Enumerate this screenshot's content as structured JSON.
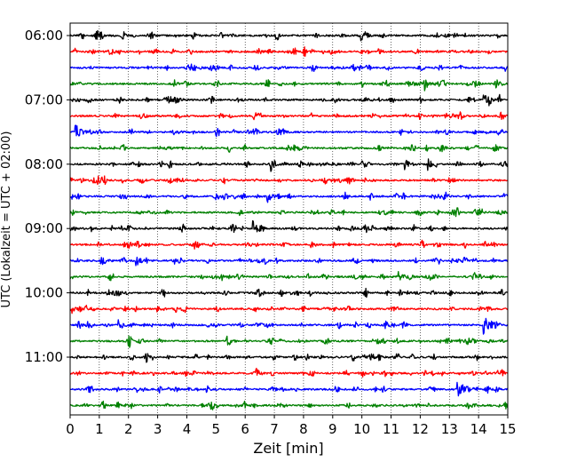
{
  "chart_data": {
    "type": "line",
    "chart_style": "seismogram-helicorder",
    "xlabel": "Zeit  [min]",
    "ylabel": "UTC (Lokalzeit = UTC + 02:00)",
    "xlim": [
      0,
      15
    ],
    "x_ticks": [
      "0",
      "1",
      "2",
      "3",
      "4",
      "5",
      "6",
      "7",
      "8",
      "9",
      "10",
      "11",
      "12",
      "13",
      "14",
      "15"
    ],
    "x_grid": "dotted-vertical",
    "trace_interval_minutes": 15,
    "y_ticks": [
      {
        "label": "06:00",
        "trace": 0
      },
      {
        "label": "07:00",
        "trace": 4
      },
      {
        "label": "08:00",
        "trace": 8
      },
      {
        "label": "09:00",
        "trace": 12
      },
      {
        "label": "10:00",
        "trace": 16
      },
      {
        "label": "11:00",
        "trace": 20
      }
    ],
    "trace_colors": [
      "#000000",
      "#ff0000",
      "#0000ff",
      "#008000"
    ],
    "trace_count": 24,
    "events": [
      {
        "trace": 0,
        "minute": 10.0,
        "amplitude": 0.35
      },
      {
        "trace": 1,
        "minute": 10.6,
        "amplitude": 0.2
      },
      {
        "trace": 3,
        "minute": 12.2,
        "amplitude": 0.4
      },
      {
        "trace": 4,
        "minute": 3.6,
        "amplitude": 0.45
      },
      {
        "trace": 4,
        "minute": 14.2,
        "amplitude": 0.45
      },
      {
        "trace": 5,
        "minute": 6.3,
        "amplitude": 0.3
      },
      {
        "trace": 6,
        "minute": 0.2,
        "amplitude": 1.1
      },
      {
        "trace": 8,
        "minute": 6.9,
        "amplitude": 0.65
      },
      {
        "trace": 8,
        "minute": 11.5,
        "amplitude": 0.45
      },
      {
        "trace": 8,
        "minute": 12.3,
        "amplitude": 0.45
      },
      {
        "trace": 10,
        "minute": 6.8,
        "amplitude": 0.45
      },
      {
        "trace": 11,
        "minute": 10.6,
        "amplitude": 0.2
      },
      {
        "trace": 12,
        "minute": 6.3,
        "amplitude": 0.7
      },
      {
        "trace": 12,
        "minute": 9.6,
        "amplitude": 0.3
      },
      {
        "trace": 14,
        "minute": 1.1,
        "amplitude": 0.45
      },
      {
        "trace": 14,
        "minute": 2.3,
        "amplitude": 0.4
      },
      {
        "trace": 15,
        "minute": 11.3,
        "amplitude": 0.35
      },
      {
        "trace": 16,
        "minute": 1.3,
        "amplitude": 0.3
      },
      {
        "trace": 17,
        "minute": 3.0,
        "amplitude": 0.25
      },
      {
        "trace": 18,
        "minute": 1.7,
        "amplitude": 0.5
      },
      {
        "trace": 18,
        "minute": 14.2,
        "amplitude": 0.95
      },
      {
        "trace": 19,
        "minute": 5.4,
        "amplitude": 0.3
      },
      {
        "trace": 21,
        "minute": 6.4,
        "amplitude": 0.4
      },
      {
        "trace": 21,
        "minute": 14.8,
        "amplitude": 0.35
      },
      {
        "trace": 22,
        "minute": 4.7,
        "amplitude": 0.35
      },
      {
        "trace": 22,
        "minute": 13.3,
        "amplitude": 0.65
      }
    ]
  }
}
